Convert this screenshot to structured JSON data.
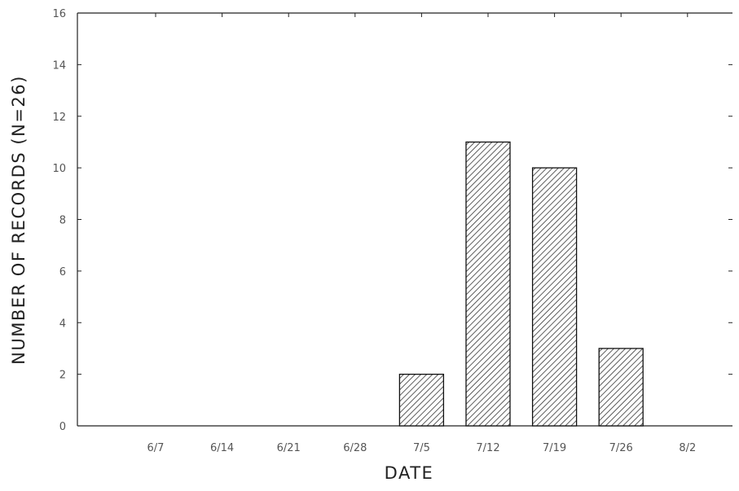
{
  "chart_data": {
    "type": "bar",
    "title": "",
    "xlabel": "DATE",
    "ylabel": "NUMBER OF RECORDS (N=26)",
    "categories": [
      "6/7",
      "6/14",
      "6/21",
      "6/28",
      "7/5",
      "7/12",
      "7/19",
      "7/26",
      "8/2"
    ],
    "values": [
      0,
      0,
      0,
      0,
      2,
      11,
      10,
      3,
      0
    ],
    "ylim": [
      0,
      16
    ],
    "yticks": [
      "0",
      "2",
      "4",
      "6",
      "8",
      "10",
      "12",
      "14",
      "16"
    ],
    "grid": false,
    "bar_fill": "hatched",
    "colors": {
      "axis": "#222222",
      "bar_edge": "#111111",
      "hatch": "#333333",
      "text": "#222222"
    }
  }
}
